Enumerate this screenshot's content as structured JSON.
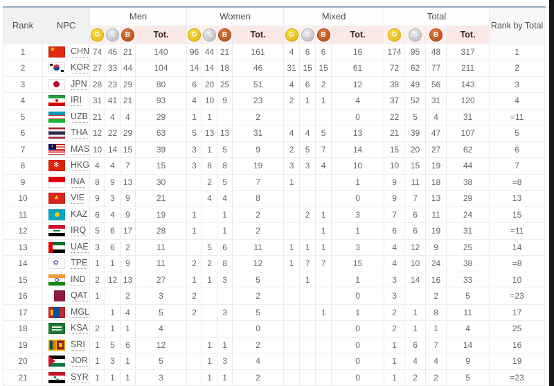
{
  "header": {
    "rank": "Rank",
    "npc": "NPC",
    "rank_by_total": "Rank by Total",
    "groups": [
      {
        "label": "Men"
      },
      {
        "label": "Women"
      },
      {
        "label": "Mixed"
      },
      {
        "label": "Total"
      }
    ],
    "medal_letters": [
      "G",
      "S",
      "B"
    ],
    "tot_label": "Tot."
  },
  "colors": {
    "header_accent_pink": "#fdf0ee",
    "tot_header_pink": "#fbe9e7",
    "table_top_border": "#8fabc0",
    "gold_medal": "#eec41b",
    "silver_medal": "#c9c9cd",
    "bronze_medal": "#c25a22",
    "header_gray": "#f1f1f1"
  },
  "rows": [
    {
      "rank": "1",
      "npc": "CHN",
      "men": [
        "74",
        "45",
        "21",
        "140"
      ],
      "women": [
        "96",
        "44",
        "21",
        "161"
      ],
      "mixed": [
        "4",
        "6",
        "6",
        "16"
      ],
      "total": [
        "174",
        "95",
        "48",
        "317"
      ],
      "rank_by_total": "1"
    },
    {
      "rank": "2",
      "npc": "KOR",
      "men": [
        "27",
        "33",
        "44",
        "104"
      ],
      "women": [
        "14",
        "14",
        "18",
        "46"
      ],
      "mixed": [
        "31",
        "15",
        "15",
        "61"
      ],
      "total": [
        "72",
        "62",
        "77",
        "211"
      ],
      "rank_by_total": "2"
    },
    {
      "rank": "3",
      "npc": "JPN",
      "men": [
        "28",
        "23",
        "29",
        "80"
      ],
      "women": [
        "6",
        "20",
        "25",
        "51"
      ],
      "mixed": [
        "4",
        "6",
        "2",
        "12"
      ],
      "total": [
        "38",
        "49",
        "56",
        "143"
      ],
      "rank_by_total": "3"
    },
    {
      "rank": "4",
      "npc": "IRI",
      "men": [
        "31",
        "41",
        "21",
        "93"
      ],
      "women": [
        "4",
        "10",
        "9",
        "23"
      ],
      "mixed": [
        "2",
        "1",
        "1",
        "4"
      ],
      "total": [
        "37",
        "52",
        "31",
        "120"
      ],
      "rank_by_total": "4"
    },
    {
      "rank": "5",
      "npc": "UZB",
      "men": [
        "21",
        "4",
        "4",
        "29"
      ],
      "women": [
        "1",
        "1",
        "",
        "2"
      ],
      "mixed": [
        "",
        "",
        "",
        "0"
      ],
      "total": [
        "22",
        "5",
        "4",
        "31"
      ],
      "rank_by_total": "=11"
    },
    {
      "rank": "6",
      "npc": "THA",
      "men": [
        "12",
        "22",
        "29",
        "63"
      ],
      "women": [
        "5",
        "13",
        "13",
        "31"
      ],
      "mixed": [
        "4",
        "4",
        "5",
        "13"
      ],
      "total": [
        "21",
        "39",
        "47",
        "107"
      ],
      "rank_by_total": "5"
    },
    {
      "rank": "7",
      "npc": "MAS",
      "men": [
        "10",
        "14",
        "15",
        "39"
      ],
      "women": [
        "3",
        "1",
        "5",
        "9"
      ],
      "mixed": [
        "2",
        "5",
        "7",
        "14"
      ],
      "total": [
        "15",
        "20",
        "27",
        "62"
      ],
      "rank_by_total": "6"
    },
    {
      "rank": "8",
      "npc": "HKG",
      "men": [
        "4",
        "4",
        "7",
        "15"
      ],
      "women": [
        "3",
        "8",
        "8",
        "19"
      ],
      "mixed": [
        "3",
        "3",
        "4",
        "10"
      ],
      "total": [
        "10",
        "15",
        "19",
        "44"
      ],
      "rank_by_total": "7"
    },
    {
      "rank": "9",
      "npc": "INA",
      "men": [
        "8",
        "9",
        "13",
        "30"
      ],
      "women": [
        "",
        "2",
        "5",
        "7"
      ],
      "mixed": [
        "1",
        "",
        "",
        "1"
      ],
      "total": [
        "9",
        "11",
        "18",
        "38"
      ],
      "rank_by_total": "=8"
    },
    {
      "rank": "10",
      "npc": "VIE",
      "men": [
        "9",
        "3",
        "9",
        "21"
      ],
      "women": [
        "",
        "4",
        "4",
        "8"
      ],
      "mixed": [
        "",
        "",
        "",
        "0"
      ],
      "total": [
        "9",
        "7",
        "13",
        "29"
      ],
      "rank_by_total": "13"
    },
    {
      "rank": "11",
      "npc": "KAZ",
      "men": [
        "6",
        "4",
        "9",
        "19"
      ],
      "women": [
        "1",
        "",
        "1",
        "2"
      ],
      "mixed": [
        "",
        "2",
        "1",
        "3"
      ],
      "total": [
        "7",
        "6",
        "11",
        "24"
      ],
      "rank_by_total": "15"
    },
    {
      "rank": "12",
      "npc": "IRQ",
      "men": [
        "5",
        "6",
        "17",
        "28"
      ],
      "women": [
        "1",
        "",
        "1",
        "2"
      ],
      "mixed": [
        "",
        "",
        "1",
        "1"
      ],
      "total": [
        "6",
        "6",
        "19",
        "31"
      ],
      "rank_by_total": "=11"
    },
    {
      "rank": "13",
      "npc": "UAE",
      "men": [
        "3",
        "6",
        "2",
        "11"
      ],
      "women": [
        "",
        "5",
        "6",
        "11"
      ],
      "mixed": [
        "1",
        "1",
        "1",
        "3"
      ],
      "total": [
        "4",
        "12",
        "9",
        "25"
      ],
      "rank_by_total": "14"
    },
    {
      "rank": "14",
      "npc": "TPE",
      "men": [
        "1",
        "1",
        "9",
        "11"
      ],
      "women": [
        "2",
        "2",
        "8",
        "12"
      ],
      "mixed": [
        "1",
        "7",
        "7",
        "15"
      ],
      "total": [
        "4",
        "10",
        "24",
        "38"
      ],
      "rank_by_total": "=8"
    },
    {
      "rank": "15",
      "npc": "IND",
      "men": [
        "2",
        "12",
        "13",
        "27"
      ],
      "women": [
        "1",
        "1",
        "3",
        "5"
      ],
      "mixed": [
        "",
        "1",
        "",
        "1"
      ],
      "total": [
        "3",
        "14",
        "16",
        "33"
      ],
      "rank_by_total": "10"
    },
    {
      "rank": "16",
      "npc": "QAT",
      "men": [
        "1",
        "",
        "2",
        "3"
      ],
      "women": [
        "2",
        "",
        "",
        "2"
      ],
      "mixed": [
        "",
        "",
        "",
        "0"
      ],
      "total": [
        "3",
        "",
        "2",
        "5"
      ],
      "rank_by_total": "=23"
    },
    {
      "rank": "17",
      "npc": "MGL",
      "men": [
        "",
        "1",
        "4",
        "5"
      ],
      "women": [
        "2",
        "",
        "3",
        "5"
      ],
      "mixed": [
        "",
        "",
        "1",
        "1"
      ],
      "total": [
        "2",
        "1",
        "8",
        "11"
      ],
      "rank_by_total": "17"
    },
    {
      "rank": "18",
      "npc": "KSA",
      "men": [
        "2",
        "1",
        "1",
        "4"
      ],
      "women": [
        "",
        "",
        "",
        "0"
      ],
      "mixed": [
        "",
        "",
        "",
        "0"
      ],
      "total": [
        "2",
        "1",
        "1",
        "4"
      ],
      "rank_by_total": "25"
    },
    {
      "rank": "19",
      "npc": "SRI",
      "men": [
        "1",
        "5",
        "6",
        "12"
      ],
      "women": [
        "",
        "1",
        "1",
        "2"
      ],
      "mixed": [
        "",
        "",
        "",
        "0"
      ],
      "total": [
        "1",
        "6",
        "7",
        "14"
      ],
      "rank_by_total": "16"
    },
    {
      "rank": "20",
      "npc": "JOR",
      "men": [
        "1",
        "3",
        "1",
        "5"
      ],
      "women": [
        "",
        "1",
        "3",
        "4"
      ],
      "mixed": [
        "",
        "",
        "",
        "0"
      ],
      "total": [
        "1",
        "4",
        "4",
        "9"
      ],
      "rank_by_total": "19"
    },
    {
      "rank": "21",
      "npc": "SYR",
      "men": [
        "1",
        "1",
        "1",
        "3"
      ],
      "women": [
        "",
        "1",
        "1",
        "2"
      ],
      "mixed": [
        "",
        "",
        "",
        "0"
      ],
      "total": [
        "1",
        "2",
        "2",
        "5"
      ],
      "rank_by_total": "=23"
    }
  ]
}
